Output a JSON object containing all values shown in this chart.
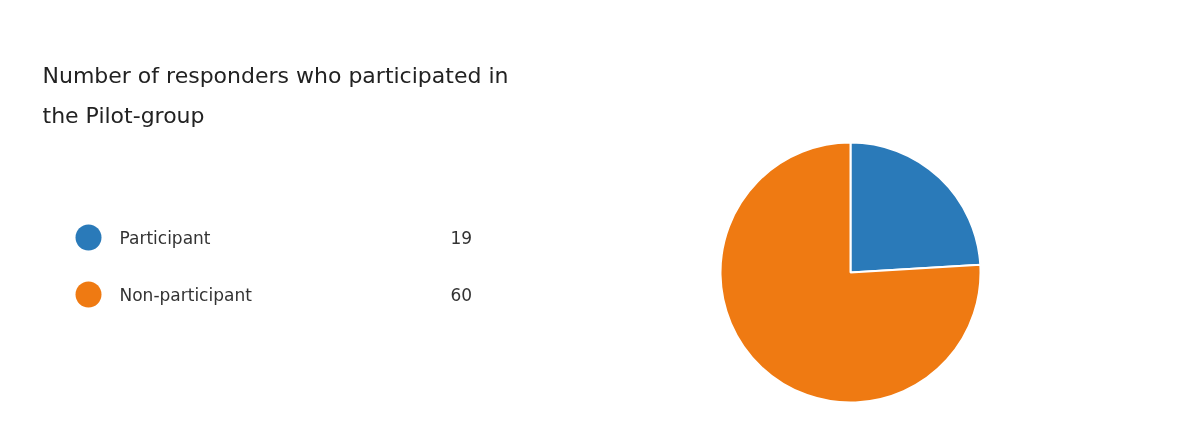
{
  "chart_data": {
    "type": "pie",
    "title": "Number of responders who participated in the Pilot-group",
    "categories": [
      "Participant",
      "Non-participant"
    ],
    "values": [
      19,
      60
    ],
    "colors": [
      "#2a7ab9",
      "#ef7a12"
    ],
    "legend": "left",
    "data_labels": true
  }
}
